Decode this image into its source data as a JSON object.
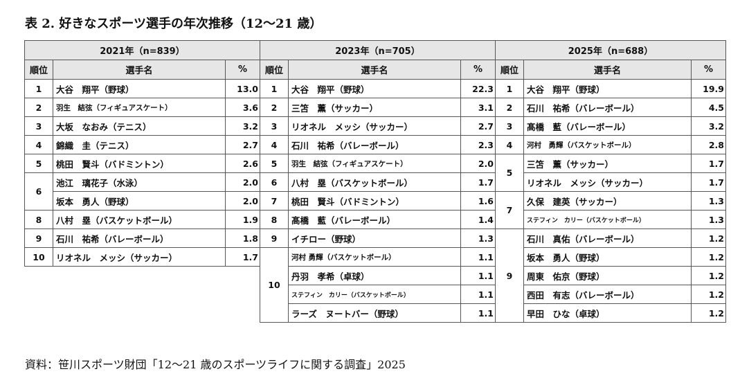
{
  "title": "表 2. 好きなスポーツ選手の年次推移（12〜21 歳）",
  "source": "資料：笹川スポーツ財団「12〜21 歳のスポーツライフに関する調査」2025",
  "columns": {
    "rank": "順位",
    "name": "選手名",
    "pct": "%"
  },
  "years": [
    {
      "label": "2021年（n=839）",
      "rows": [
        {
          "rank": "1",
          "name": "大谷　翔平（野球）",
          "pct": "13.0"
        },
        {
          "rank": "2",
          "name": "羽生　結弦（フィギュアスケート）",
          "pct": "3.6"
        },
        {
          "rank": "3",
          "name": "大坂　なおみ（テニス）",
          "pct": "3.2"
        },
        {
          "rank": "4",
          "name": "錦織　圭（テニス）",
          "pct": "2.7"
        },
        {
          "rank": "5",
          "name": "桃田　賢斗（バドミントン）",
          "pct": "2.6"
        },
        {
          "rank": "6",
          "name": "池江　璃花子（水泳）",
          "pct": "2.0"
        },
        {
          "rank": "6",
          "name": "坂本　勇人（野球）",
          "pct": "2.0"
        },
        {
          "rank": "8",
          "name": "八村　塁（バスケットボール）",
          "pct": "1.9"
        },
        {
          "rank": "9",
          "name": "石川　祐希（バレーボール）",
          "pct": "1.8"
        },
        {
          "rank": "10",
          "name": "リオネル　メッシ（サッカー）",
          "pct": "1.7"
        }
      ]
    },
    {
      "label": "2023年（n=705）",
      "rows": [
        {
          "rank": "1",
          "name": "大谷　翔平（野球）",
          "pct": "22.3"
        },
        {
          "rank": "2",
          "name": "三笘　薫（サッカー）",
          "pct": "3.1"
        },
        {
          "rank": "3",
          "name": "リオネル　メッシ（サッカー）",
          "pct": "2.7"
        },
        {
          "rank": "4",
          "name": "石川　祐希（バレーボール）",
          "pct": "2.3"
        },
        {
          "rank": "5",
          "name": "羽生　結弦（フィギュアスケート）",
          "pct": "2.0"
        },
        {
          "rank": "6",
          "name": "八村　塁（バスケットボール）",
          "pct": "1.7"
        },
        {
          "rank": "7",
          "name": "桃田　賢斗（バドミントン）",
          "pct": "1.6"
        },
        {
          "rank": "8",
          "name": "髙橋　藍（バレーボール）",
          "pct": "1.4"
        },
        {
          "rank": "9",
          "name": "イチロー（野球）",
          "pct": "1.3"
        },
        {
          "rank": "10",
          "name": "河村 勇輝（バスケットボール）",
          "pct": "1.1"
        },
        {
          "rank": "10",
          "name": "丹羽　孝希（卓球）",
          "pct": "1.1"
        },
        {
          "rank": "10",
          "name": "ステフィン　カリー（バスケットボール）",
          "pct": "1.1"
        },
        {
          "rank": "10",
          "name": "ラーズ　ヌートバー（野球）",
          "pct": "1.1"
        }
      ]
    },
    {
      "label": "2025年（n=688）",
      "rows": [
        {
          "rank": "1",
          "name": "大谷　翔平（野球）",
          "pct": "19.9"
        },
        {
          "rank": "2",
          "name": "石川　祐希（バレーボール）",
          "pct": "4.5"
        },
        {
          "rank": "3",
          "name": "髙橋　藍（バレーボール）",
          "pct": "3.2"
        },
        {
          "rank": "4",
          "name": "河村　勇輝（バスケットボール）",
          "pct": "2.8"
        },
        {
          "rank": "5",
          "name": "三笘　薫（サッカー）",
          "pct": "1.7"
        },
        {
          "rank": "5",
          "name": "リオネル　メッシ（サッカー）",
          "pct": "1.7"
        },
        {
          "rank": "7",
          "name": "久保　建英（サッカー）",
          "pct": "1.3"
        },
        {
          "rank": "7",
          "name": "ステフィン　カリー（バスケットボール）",
          "pct": "1.3"
        },
        {
          "rank": "9",
          "name": "石川　真佑（バレーボール）",
          "pct": "1.2"
        },
        {
          "rank": "9",
          "name": "坂本　勇人（野球）",
          "pct": "1.2"
        },
        {
          "rank": "9",
          "name": "周東　佑京（野球）",
          "pct": "1.2"
        },
        {
          "rank": "9",
          "name": "西田　有志（バレーボール）",
          "pct": "1.2"
        },
        {
          "rank": "9",
          "name": "早田　ひな（卓球）",
          "pct": "1.2"
        }
      ]
    }
  ]
}
